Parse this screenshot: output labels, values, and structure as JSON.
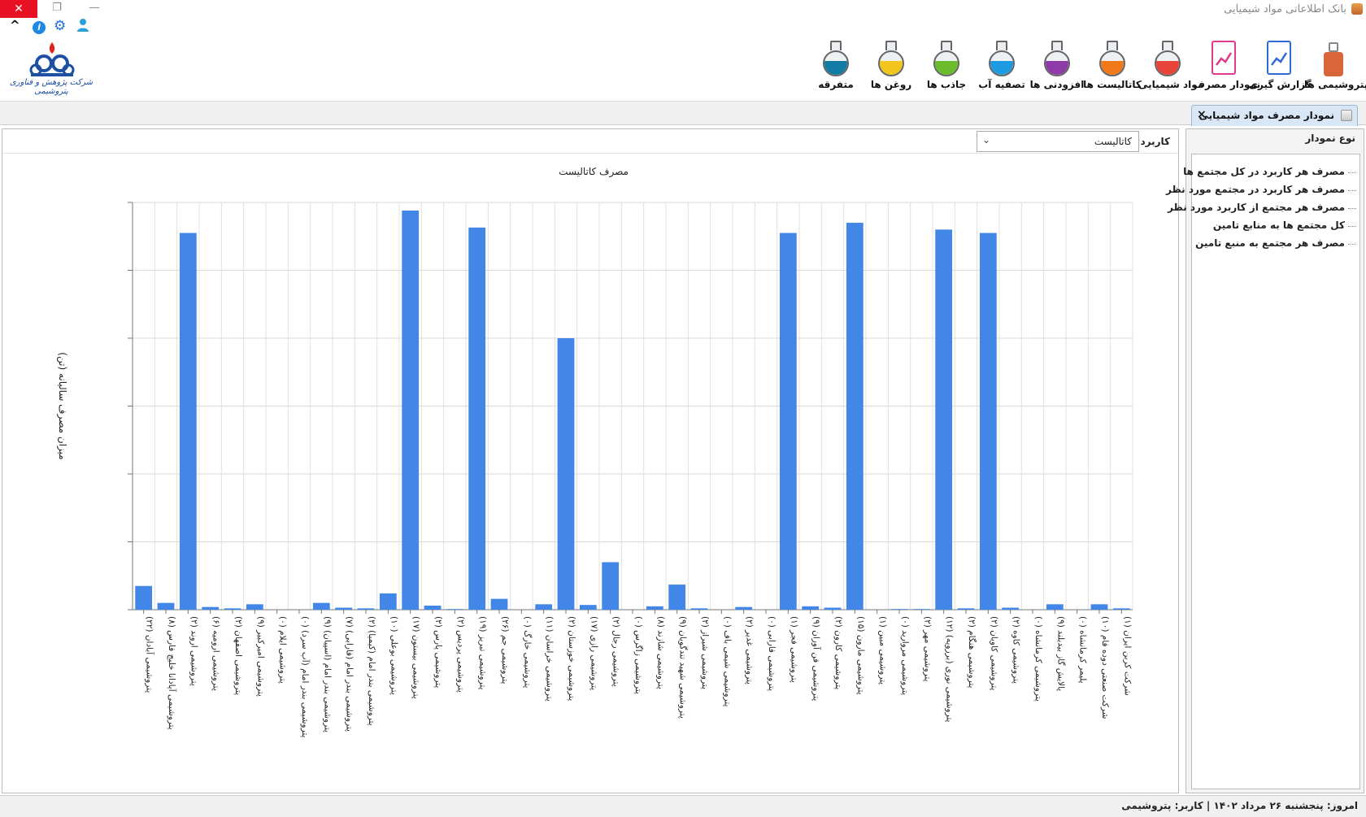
{
  "window": {
    "title": "بانک اطلاعاتی مواد شیمیایی",
    "close_glyph": "✕",
    "max_glyph": "❐",
    "min_glyph": "—"
  },
  "quick_access": [
    "chevron-up-icon",
    "info-icon",
    "gear-icon",
    "user-icon"
  ],
  "logo": {
    "text": "شرکت پژوهش و فناوری پتروشیمی"
  },
  "toolbar": {
    "items": [
      {
        "label": "پتروشیمی ها",
        "icon": "petrochemical-plant-icon",
        "color": "#d9663a"
      },
      {
        "label": "گزارش گیری",
        "icon": "report-document-icon",
        "color": "#2f6bd6"
      },
      {
        "label": "نمودار مصرف",
        "icon": "consumption-chart-icon",
        "color": "#e23a8a"
      },
      {
        "label": "مواد شیمیایی",
        "icon": "chemicals-flask-icon",
        "color": "#e8443a"
      },
      {
        "label": "کاتالیست ها",
        "icon": "catalyst-flask-icon",
        "color": "#f07a1a"
      },
      {
        "label": "افزودنی ها",
        "icon": "additives-flask-icon",
        "color": "#8e3aa8"
      },
      {
        "label": "تصفیه آب",
        "icon": "water-treatment-flask-icon",
        "color": "#1e9be0"
      },
      {
        "label": "جاذب ها",
        "icon": "adsorbents-flask-icon",
        "color": "#6cbb2c"
      },
      {
        "label": "روغن ها",
        "icon": "oils-flask-icon",
        "color": "#f2c41e"
      },
      {
        "label": "متفرقه",
        "icon": "miscellaneous-flask-icon",
        "color": "#137ca6"
      }
    ]
  },
  "tab": {
    "title": "نمودار مصرف مواد شیمیایی",
    "close": "×"
  },
  "filter": {
    "label": "کاربرد:",
    "value": "کاتالیست"
  },
  "side": {
    "title": "نوع نمودار",
    "items": [
      "مصرف هر کاربرد در کل مجتمع ها",
      "مصرف هر کاربرد در مجتمع مورد نظر",
      "مصرف هر مجتمع از کاربرد مورد نظر",
      "کل مجتمع ها به منابع تامین",
      "مصرف هر مجتمع به منبع تامین"
    ]
  },
  "status": {
    "text": "امروز: پنجشنبه ۲۶ مرداد ۱۴۰۲   |   کاربر: پتروشیمی"
  },
  "chart_data": {
    "type": "bar",
    "title": "مصرف کاتالیست",
    "ylabel": "میزان مصرف سالیانه (تن)",
    "xlabel": "",
    "ylim": [
      0,
      6
    ],
    "grid": true,
    "color": "#4287e8",
    "categories": [
      "پتروشیمی آبادان (۲۲)",
      "پتروشیمی آپادانا خلیج فارس (۸)",
      "پتروشیمی اروند (۲)",
      "پتروشیمی ارومیه (۶)",
      "پتروشیمی اصفهان (۲)",
      "پتروشیمی امیرکبیر (۹)",
      "پتروشیمی ایلام (۰)",
      "پتروشیمی بندر امام (آب سرد) (۰)",
      "پتروشیمی بندر امام (اسپیان) (۹)",
      "پتروشیمی بندر امام (فارابی) (۷)",
      "پتروشیمی بندر امام (کیمیا) (۲)",
      "پتروشیمی بوعلی (۱۰)",
      "پتروشیمی بیستون (۱۷)",
      "پتروشیمی پارس (۲)",
      "پتروشیمی پردیس (۲)",
      "پتروشیمی تبریز (۱۹)",
      "پتروشیمی جم (۲۶)",
      "پتروشیمی خارگ (۰)",
      "پتروشیمی خراسان (۱۱)",
      "پتروشیمی خوزستان (۲)",
      "پتروشیمی رازی (۱۷)",
      "پتروشیمی رجال (۲)",
      "پتروشیمی زاگرس (۰)",
      "پتروشیمی شازند (۸)",
      "پتروشیمی شهید تندگویان (۹)",
      "پتروشیمی شیراز (۲)",
      "پتروشیمی شیمی باف (۰)",
      "پتروشیمی غدیر (۲)",
      "پتروشیمی فارابی (۰)",
      "پتروشیمی فجر (۱)",
      "پتروشیمی فن آوران (۹)",
      "پتروشیمی کارون (۲)",
      "پتروشیمی مارون (۱۵)",
      "پتروشیمی مبین (۱)",
      "پتروشیمی مروارید (۰)",
      "پتروشیمی مهر (۲)",
      "پتروشیمی نوری (برزویه) (۱۲)",
      "پتروشیمی هنگام (۲)",
      "پتروشیمی کاویان (۲)",
      "پتروشیمی کاوه (۲)",
      "پتروشیمی کرمانشاه (۰)",
      "پالایش گاز بیدبلند (۹)",
      "پلیمر کرمانشاه (۰)",
      "شرکت صنعتی دوده فام (۱۰)",
      "شرکت کربن ایران (۱)"
    ],
    "values": [
      0.35,
      0.1,
      5.55,
      0.04,
      0.02,
      0.08,
      0.0,
      0.0,
      0.1,
      0.03,
      0.02,
      0.24,
      5.88,
      0.06,
      0.01,
      5.63,
      0.16,
      0.0,
      0.08,
      4.0,
      0.07,
      0.7,
      0.0,
      0.05,
      0.37,
      0.02,
      0.0,
      0.04,
      0.0,
      5.55,
      0.05,
      0.03,
      5.7,
      0.0,
      0.01,
      0.01,
      5.6,
      0.02,
      5.55,
      0.03,
      0.0,
      0.08,
      0.0,
      0.08,
      0.02
    ]
  }
}
